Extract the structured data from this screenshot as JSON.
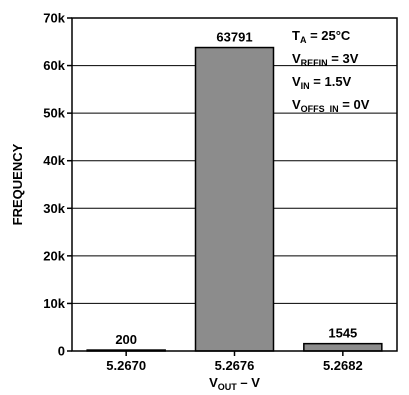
{
  "chart_data": {
    "type": "bar",
    "categories": [
      "5.2670",
      "5.2676",
      "5.2682"
    ],
    "values": [
      200,
      63791,
      1545
    ],
    "data_labels": [
      "200",
      "63791",
      "1545"
    ],
    "xlabel": {
      "main": "V",
      "sub": "OUT",
      "suffix": " – V"
    },
    "ylabel": "FREQUENCY",
    "ylim": [
      0,
      70000
    ],
    "yticks": [
      0,
      10000,
      20000,
      30000,
      40000,
      50000,
      60000,
      70000
    ],
    "ytick_labels": [
      "0",
      "10k",
      "20k",
      "30k",
      "40k",
      "50k",
      "60k",
      "70k"
    ],
    "grid": true,
    "bar_color": "#8c8c8c",
    "annotations": [
      {
        "main": "T",
        "sub": "A",
        "suffix": " = 25°C"
      },
      {
        "main": "V",
        "sub": "REFIN",
        "suffix": " = 3V"
      },
      {
        "main": "V",
        "sub": "IN",
        "suffix": " = 1.5V"
      },
      {
        "main": "V",
        "sub": "OFFS_IN",
        "suffix": " = 0V"
      }
    ]
  }
}
